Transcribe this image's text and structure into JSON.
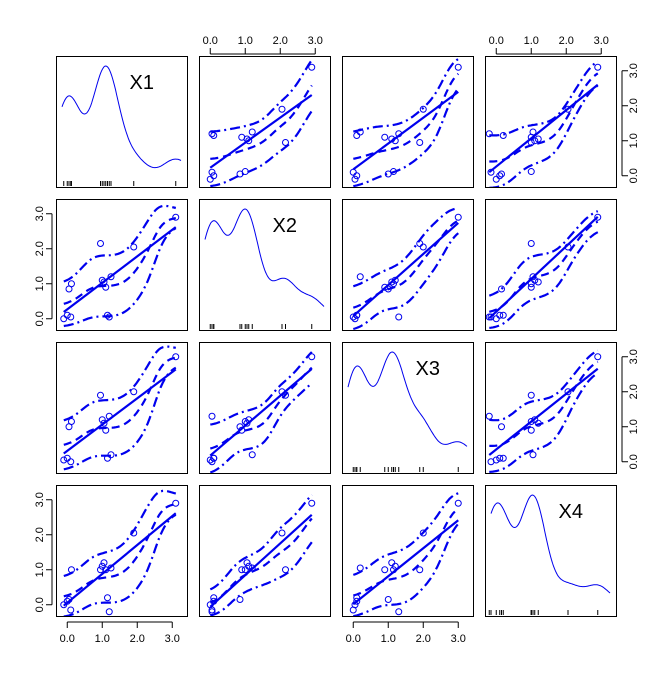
{
  "chart_data": {
    "type": "scatter",
    "title": "",
    "variables": [
      "X1",
      "X2",
      "X3",
      "X4"
    ],
    "axis_range": [
      -0.15,
      3.25
    ],
    "ticks": [
      0.0,
      1.0,
      2.0,
      3.0
    ],
    "tick_labels": [
      "0.0",
      "1.0",
      "2.0",
      "3.0"
    ],
    "tick_sides": {
      "top": [
        1,
        3
      ],
      "right": [
        0,
        2
      ],
      "left": [
        1,
        3
      ],
      "bottom": [
        0,
        2
      ]
    },
    "observations": {
      "X1": [
        -0.1,
        0.0,
        0.1,
        0.05,
        0.12,
        1.0,
        1.05,
        1.15,
        1.2,
        1.25,
        1.1,
        1.9,
        3.1,
        0.95
      ],
      "X2": [
        0.0,
        0.1,
        0.05,
        0.85,
        1.0,
        1.1,
        1.05,
        0.1,
        0.05,
        1.2,
        0.9,
        2.05,
        2.9,
        2.15
      ],
      "X3": [
        0.05,
        0.1,
        0.0,
        1.0,
        1.15,
        1.2,
        1.1,
        0.1,
        1.3,
        0.2,
        0.9,
        2.0,
        3.0,
        1.9
      ],
      "X4": [
        0.0,
        0.1,
        -0.15,
        0.15,
        1.0,
        1.1,
        1.2,
        0.2,
        -0.2,
        1.05,
        1.0,
        2.05,
        2.9,
        1.0
      ]
    },
    "series": [
      {
        "name": "Observations",
        "mark": "circle"
      },
      {
        "name": "Linear fit",
        "mark": "solid line"
      },
      {
        "name": "Smooth fit",
        "mark": "dashed line"
      },
      {
        "name": "Spread bands",
        "mark": "dash-dot lines"
      }
    ],
    "diagonal": "density with rug",
    "grid": false
  }
}
